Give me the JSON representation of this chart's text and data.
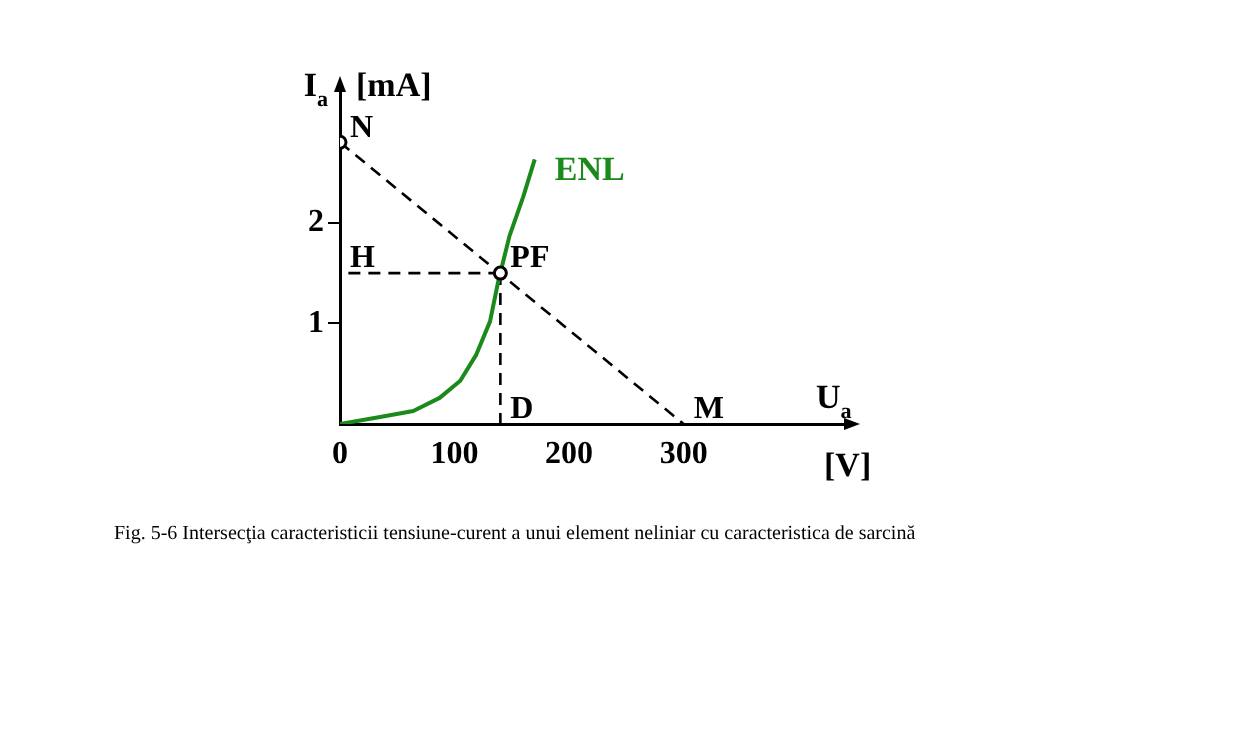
{
  "chart_data": {
    "type": "line",
    "xlabel": "U$_{a}$ [V]",
    "ylabel": "I$_{a}$ [mA]",
    "xlim": [
      0,
      440
    ],
    "ylim": [
      0,
      3.3
    ],
    "xticks": [
      0,
      100,
      200,
      300
    ],
    "yticks": [
      1,
      2
    ],
    "grid": false,
    "legend": false,
    "series": [
      {
        "name": "ENL",
        "type": "line",
        "color": "#1a8a1a",
        "line_style": "solid",
        "marker": "none",
        "x": [
          0,
          35,
          64,
          87,
          105,
          119,
          131,
          138,
          148,
          160,
          170
        ],
        "values": [
          0,
          0.07,
          0.13,
          0.26,
          0.43,
          0.69,
          1.02,
          1.41,
          1.87,
          2.26,
          2.63
        ]
      },
      {
        "type": "line",
        "color": "#000000",
        "line_style": "dashed",
        "marker": "none",
        "x": [
          0,
          300
        ],
        "values": [
          2.8,
          0
        ]
      },
      {
        "type": "line",
        "color": "#000000",
        "line_style": "dashed",
        "marker": "none",
        "x": [
          140,
          0
        ],
        "values": [
          1.5,
          1.5
        ]
      },
      {
        "type": "line",
        "color": "#000000",
        "line_style": "dashed",
        "marker": "none",
        "x": [
          140,
          140
        ],
        "values": [
          1.5,
          0
        ]
      },
      {
        "type": "scatter",
        "color": "#000000",
        "marker": "circle",
        "x": [
          0,
          140
        ],
        "values": [
          2.8,
          1.5
        ]
      }
    ],
    "annotations": [
      {
        "text": "N",
        "x": 0,
        "y": 2.8
      },
      {
        "text": "PF",
        "x": 140,
        "y": 1.5
      },
      {
        "text": "H",
        "x": 0,
        "y": 1.5
      },
      {
        "text": "D",
        "x": 140,
        "y": 0
      },
      {
        "text": "M",
        "x": 300,
        "y": 0
      },
      "Fig. 5-6 Intersecţia caracteristicii tensiune-curent a unui element neliniar cu caracteristica de sarcină"
    ]
  }
}
